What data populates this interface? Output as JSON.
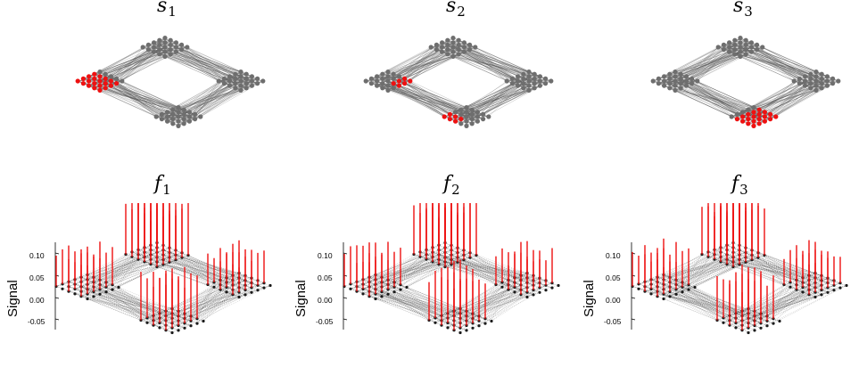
{
  "graph_panels": [
    {
      "symbol": "s",
      "index": "1",
      "highlighted_cluster": "left",
      "highlight_color": "#ee1111"
    },
    {
      "symbol": "s",
      "index": "2",
      "highlighted_cluster": "left-bottom",
      "highlight_color": "#ee1111"
    },
    {
      "symbol": "s",
      "index": "3",
      "highlighted_cluster": "bottom",
      "highlight_color": "#ee1111"
    }
  ],
  "signal_panels": [
    {
      "symbol": "f",
      "index": "1",
      "ylabel": "Signal",
      "yticks": [
        "0.10",
        "0.05",
        "0.00",
        "-0.05"
      ],
      "peak_cluster": "top"
    },
    {
      "symbol": "f",
      "index": "2",
      "ylabel": "Signal",
      "yticks": [
        "0.10",
        "0.05",
        "0.00",
        "-0.05"
      ],
      "peak_cluster": "top"
    },
    {
      "symbol": "f",
      "index": "3",
      "ylabel": "Signal",
      "yticks": [
        "0.10",
        "0.05",
        "0.00",
        "-0.05"
      ],
      "peak_cluster": "top"
    }
  ],
  "colors": {
    "node": "#6e6e6e",
    "edge": "#555555",
    "highlight": "#ee1111",
    "stem": "#ee1111",
    "base_node": "#1a1a1a"
  },
  "icons": [
    "ring-of-clusters-graph",
    "3d-stem-plot"
  ]
}
